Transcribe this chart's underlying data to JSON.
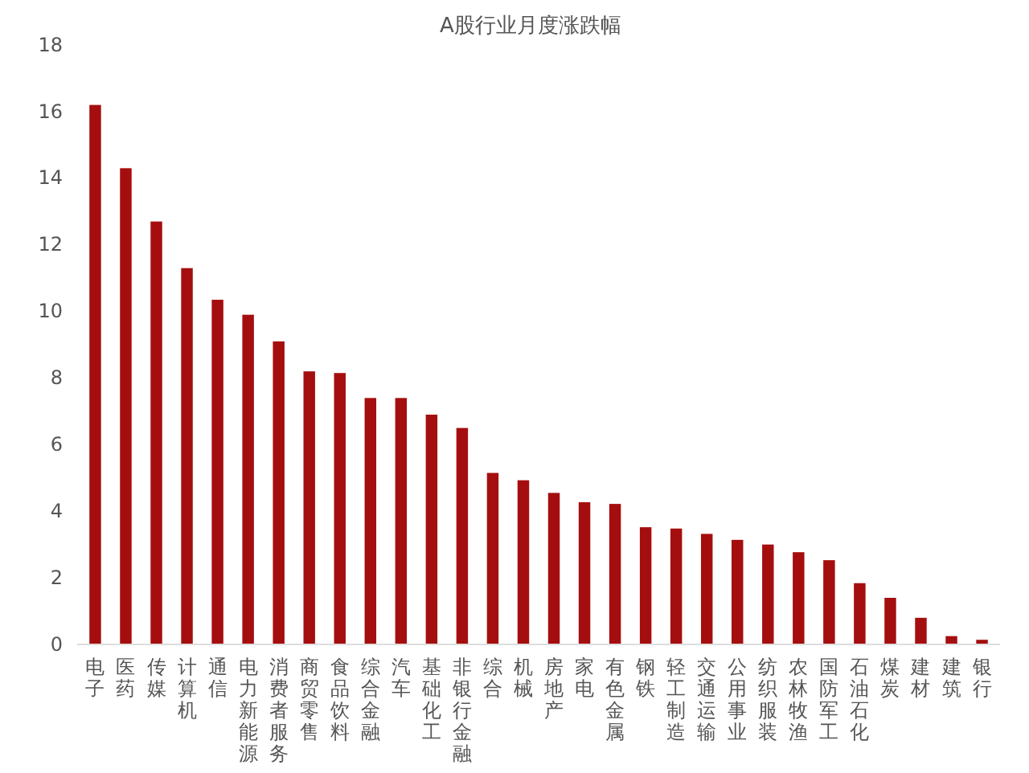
{
  "chart_data": {
    "type": "bar",
    "title": "A股行业月度涨跌幅",
    "categories": [
      "电子",
      "医药",
      "传媒",
      "计算机",
      "通信",
      "电力新能源",
      "消费者服务",
      "商贸零售",
      "食品饮料",
      "综合金融",
      "汽车",
      "基础化工",
      "非银行金融",
      "综合",
      "机械",
      "房地产",
      "家电",
      "有色金属",
      "钢铁",
      "轻工制造",
      "交通运输",
      "公用事业",
      "纺织服装",
      "农林牧渔",
      "国防军工",
      "石油石化",
      "煤炭",
      "建材",
      "建筑",
      "银行"
    ],
    "values": [
      16.2,
      14.3,
      12.7,
      11.3,
      10.35,
      9.9,
      9.1,
      8.2,
      8.15,
      7.4,
      7.4,
      6.9,
      6.5,
      5.15,
      4.93,
      4.55,
      4.27,
      4.22,
      3.52,
      3.48,
      3.32,
      3.14,
      3.0,
      2.77,
      2.53,
      1.84,
      1.4,
      0.8,
      0.25,
      0.14
    ],
    "color": "#a50e0e",
    "ylim": [
      0,
      18
    ],
    "yticks": [
      0,
      2,
      4,
      6,
      8,
      10,
      12,
      14,
      16,
      18
    ],
    "grid": false
  }
}
